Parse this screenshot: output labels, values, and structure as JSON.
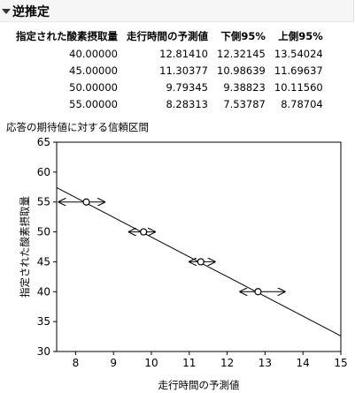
{
  "panel": {
    "title": "逆推定"
  },
  "table": {
    "headers": [
      "指定された酸素摂取量",
      "走行時間の予測値",
      "下側95%",
      "上側95%"
    ],
    "rows": [
      [
        "40.00000",
        "12.81410",
        "12.32145",
        "13.54024"
      ],
      [
        "45.00000",
        "11.30377",
        "10.98639",
        "11.69637"
      ],
      [
        "50.00000",
        "9.79345",
        "9.38823",
        "10.11560"
      ],
      [
        "55.00000",
        "8.28313",
        "7.53787",
        "8.78704"
      ]
    ]
  },
  "chart_data": {
    "type": "scatter",
    "title": "応答の期待値に対する信頼区間",
    "xlabel": "走行時間の予測値",
    "ylabel": "指定された酸素摂取量",
    "xlim": [
      7.5,
      15
    ],
    "ylim": [
      30,
      65
    ],
    "xticks": [
      "8",
      "9",
      "10",
      "11",
      "12",
      "13",
      "14",
      "15"
    ],
    "yticks": [
      "30",
      "35",
      "40",
      "45",
      "50",
      "55",
      "60",
      "65"
    ],
    "grid": false,
    "points": [
      {
        "x": 12.8141,
        "y": 40,
        "lower": 12.32145,
        "upper": 13.54024
      },
      {
        "x": 11.30377,
        "y": 45,
        "lower": 10.98639,
        "upper": 11.69637
      },
      {
        "x": 9.79345,
        "y": 50,
        "lower": 9.38823,
        "upper": 10.1156
      },
      {
        "x": 8.28313,
        "y": 55,
        "lower": 7.53787,
        "upper": 8.78704
      }
    ],
    "fit_line": {
      "x": [
        7.5,
        15
      ],
      "y": [
        57.4,
        32.6
      ]
    }
  }
}
